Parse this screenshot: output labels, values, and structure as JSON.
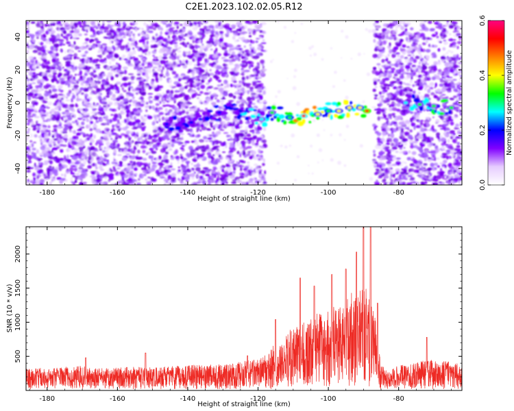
{
  "figure": {
    "title": "C2E1.2023.102.02.05.R12"
  },
  "colorbar": {
    "label": "Normalized spectral amplitude",
    "range": [
      0.0,
      0.6
    ],
    "ticks": [
      "0.0",
      "0.2",
      "0.4",
      "0.6"
    ],
    "colormap": [
      "#ffffff",
      "#e6ccff",
      "#8000ff",
      "#0000ff",
      "#00ffff",
      "#00ff00",
      "#ffff00",
      "#ff8000",
      "#ff0000",
      "#ff0080"
    ]
  },
  "chart_data": [
    {
      "type": "heatmap",
      "title": "",
      "xlabel": "Height of straight line (km)",
      "ylabel": "Frequency (Hz)",
      "xlim": [
        -186,
        -62
      ],
      "ylim": [
        -50,
        50
      ],
      "x_ticks": [
        "-180",
        "-160",
        "-140",
        "-120",
        "-100",
        "-80"
      ],
      "y_ticks": [
        "-40",
        "-20",
        "0",
        "20",
        "40"
      ],
      "grid": false,
      "z_range": [
        0.0,
        0.6
      ],
      "regions": [
        {
          "name": "noise",
          "x_range": [
            -186,
            -118
          ],
          "f_range": [
            -50,
            50
          ],
          "level": 0.12
        },
        {
          "name": "clear",
          "x_range": [
            -118,
            -87
          ],
          "f_range": [
            -50,
            50
          ],
          "level": 0.0
        },
        {
          "name": "noise",
          "x_range": [
            -87,
            -62
          ],
          "f_range": [
            -50,
            50
          ],
          "level": 0.12
        }
      ],
      "signal_band": [
        {
          "x": -146,
          "f": -13,
          "amp": 0.22
        },
        {
          "x": -139,
          "f": -12,
          "amp": 0.2
        },
        {
          "x": -131,
          "f": -6,
          "amp": 0.2
        },
        {
          "x": -125,
          "f": -5,
          "amp": 0.22
        },
        {
          "x": -119,
          "f": -10,
          "amp": 0.25
        },
        {
          "x": -116,
          "f": -6,
          "amp": 0.3
        },
        {
          "x": -111,
          "f": -9,
          "amp": 0.35
        },
        {
          "x": -107,
          "f": -8,
          "amp": 0.5
        },
        {
          "x": -103,
          "f": -7,
          "amp": 0.4
        },
        {
          "x": -100,
          "f": -5,
          "amp": 0.35
        },
        {
          "x": -97,
          "f": -5,
          "amp": 0.38
        },
        {
          "x": -94,
          "f": -3,
          "amp": 0.4
        },
        {
          "x": -91,
          "f": -3,
          "amp": 0.42
        },
        {
          "x": -89,
          "f": -5,
          "amp": 0.55
        },
        {
          "x": -78,
          "f": 0,
          "amp": 0.28
        },
        {
          "x": -74,
          "f": -1,
          "amp": 0.3
        },
        {
          "x": -70,
          "f": -2,
          "amp": 0.3
        },
        {
          "x": -65,
          "f": -3,
          "amp": 0.3
        }
      ]
    },
    {
      "type": "line",
      "title": "",
      "xlabel": "Height of straight line (km)",
      "ylabel": "SNR (10 * v/v)",
      "xlim": [
        -186,
        -62
      ],
      "ylim": [
        0,
        2400
      ],
      "x_ticks": [
        "-180",
        "-160",
        "-140",
        "-120",
        "-100",
        "-80"
      ],
      "y_ticks": [
        "500",
        "1000",
        "1500",
        "2000"
      ],
      "grid": false,
      "series": [
        {
          "name": "",
          "color": "#ee2a24",
          "x": [
            -186,
            -182,
            -178,
            -174,
            -170,
            -166,
            -162,
            -158,
            -154,
            -150,
            -146,
            -142,
            -138,
            -134,
            -130,
            -126,
            -122,
            -119,
            -117,
            -115,
            -113,
            -111,
            -109,
            -107,
            -105,
            -103,
            -101,
            -99,
            -97,
            -95,
            -93,
            -91,
            -89,
            -87,
            -85,
            -81,
            -77,
            -73,
            -69,
            -65,
            -62
          ],
          "y": [
            180,
            190,
            185,
            200,
            210,
            190,
            185,
            195,
            200,
            190,
            200,
            210,
            220,
            215,
            220,
            240,
            260,
            280,
            330,
            420,
            480,
            650,
            700,
            720,
            750,
            820,
            800,
            900,
            980,
            1000,
            1050,
            1150,
            1100,
            900,
            200,
            210,
            220,
            260,
            260,
            240,
            230
          ],
          "peaks": [
            {
              "x": -169,
              "y": 480
            },
            {
              "x": -152,
              "y": 550
            },
            {
              "x": -123,
              "y": 510
            },
            {
              "x": -115,
              "y": 1040
            },
            {
              "x": -108,
              "y": 1650
            },
            {
              "x": -104,
              "y": 1530
            },
            {
              "x": -99,
              "y": 1700
            },
            {
              "x": -95,
              "y": 1780
            },
            {
              "x": -92,
              "y": 2030
            },
            {
              "x": -90,
              "y": 2400
            },
            {
              "x": -88,
              "y": 2400
            },
            {
              "x": -86,
              "y": 1280
            },
            {
              "x": -72,
              "y": 780
            }
          ]
        }
      ]
    }
  ]
}
